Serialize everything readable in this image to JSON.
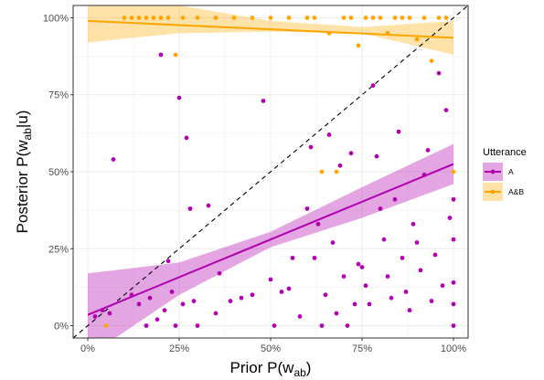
{
  "chart_data": {
    "type": "scatter",
    "title": "",
    "xlabel_main": "Prior P(w",
    "xlabel_sub": "ab",
    "xlabel_end": ")",
    "ylabel_main": "Posterior P(w",
    "ylabel_sub": "ab",
    "ylabel_end": "|u)",
    "xlim": [
      -0.04,
      1.04
    ],
    "ylim": [
      -0.04,
      1.04
    ],
    "x_ticks": [
      0,
      0.25,
      0.5,
      0.75,
      1
    ],
    "y_ticks": [
      0,
      0.25,
      0.5,
      0.75,
      1
    ],
    "tick_labels": [
      "0%",
      "25%",
      "50%",
      "75%",
      "100%"
    ],
    "grid": true,
    "reference_line": {
      "type": "diagonal",
      "style": "dashed",
      "color": "#000000"
    },
    "legend": {
      "title": "Utterance",
      "placement": "right"
    },
    "series": [
      {
        "name": "A",
        "color": "#b000b0",
        "fit": {
          "intercept": 0.035,
          "slope": 0.49
        },
        "band": {
          "x": [
            0,
            0.25,
            0.5,
            0.75,
            1
          ],
          "lower": [
            -0.1,
            0.1,
            0.255,
            0.35,
            0.46
          ],
          "upper": [
            0.17,
            0.205,
            0.305,
            0.45,
            0.59
          ]
        },
        "points": [
          {
            "x": 0.02,
            "y": 0.03
          },
          {
            "x": 0.04,
            "y": 0.05
          },
          {
            "x": 0.06,
            "y": 0.04
          },
          {
            "x": 0.07,
            "y": 0.54
          },
          {
            "x": 0.12,
            "y": 0.1
          },
          {
            "x": 0.14,
            "y": 0.07
          },
          {
            "x": 0.16,
            "y": 0.0
          },
          {
            "x": 0.17,
            "y": 0.09
          },
          {
            "x": 0.19,
            "y": 0.02
          },
          {
            "x": 0.2,
            "y": 0.88
          },
          {
            "x": 0.21,
            "y": 0.05
          },
          {
            "x": 0.22,
            "y": 0.21
          },
          {
            "x": 0.23,
            "y": 0.11
          },
          {
            "x": 0.24,
            "y": 0.0
          },
          {
            "x": 0.25,
            "y": 0.74
          },
          {
            "x": 0.26,
            "y": 0.07
          },
          {
            "x": 0.27,
            "y": 0.61
          },
          {
            "x": 0.28,
            "y": 0.38
          },
          {
            "x": 0.29,
            "y": 0.08
          },
          {
            "x": 0.3,
            "y": 0.0
          },
          {
            "x": 0.33,
            "y": 0.39
          },
          {
            "x": 0.35,
            "y": 0.04
          },
          {
            "x": 0.36,
            "y": 0.17
          },
          {
            "x": 0.39,
            "y": 0.08
          },
          {
            "x": 0.42,
            "y": 0.09
          },
          {
            "x": 0.45,
            "y": 0.1
          },
          {
            "x": 0.48,
            "y": 0.73
          },
          {
            "x": 0.5,
            "y": 0.15
          },
          {
            "x": 0.51,
            "y": 0.0
          },
          {
            "x": 0.53,
            "y": 0.11
          },
          {
            "x": 0.55,
            "y": 0.12
          },
          {
            "x": 0.56,
            "y": 0.22
          },
          {
            "x": 0.58,
            "y": 0.03
          },
          {
            "x": 0.6,
            "y": 0.38
          },
          {
            "x": 0.61,
            "y": 0.58
          },
          {
            "x": 0.62,
            "y": 0.22
          },
          {
            "x": 0.63,
            "y": 0.33
          },
          {
            "x": 0.64,
            "y": 0.0
          },
          {
            "x": 0.65,
            "y": 0.1
          },
          {
            "x": 0.66,
            "y": 0.62
          },
          {
            "x": 0.67,
            "y": 0.27
          },
          {
            "x": 0.68,
            "y": 0.04
          },
          {
            "x": 0.69,
            "y": 0.52
          },
          {
            "x": 0.7,
            "y": 0.16
          },
          {
            "x": 0.71,
            "y": 0.0
          },
          {
            "x": 0.72,
            "y": 0.56
          },
          {
            "x": 0.73,
            "y": 0.07
          },
          {
            "x": 0.74,
            "y": 0.2
          },
          {
            "x": 0.75,
            "y": 0.19
          },
          {
            "x": 0.76,
            "y": 0.13
          },
          {
            "x": 0.77,
            "y": 0.07
          },
          {
            "x": 0.78,
            "y": 0.78
          },
          {
            "x": 0.79,
            "y": 0.55
          },
          {
            "x": 0.8,
            "y": 0.38
          },
          {
            "x": 0.81,
            "y": 0.28
          },
          {
            "x": 0.82,
            "y": 0.16
          },
          {
            "x": 0.83,
            "y": 0.09
          },
          {
            "x": 0.84,
            "y": 0.41
          },
          {
            "x": 0.85,
            "y": 0.63
          },
          {
            "x": 0.86,
            "y": 0.22
          },
          {
            "x": 0.87,
            "y": 0.11
          },
          {
            "x": 0.88,
            "y": 0.05
          },
          {
            "x": 0.89,
            "y": 0.33
          },
          {
            "x": 0.9,
            "y": 0.27
          },
          {
            "x": 0.91,
            "y": 0.18
          },
          {
            "x": 0.92,
            "y": 0.49
          },
          {
            "x": 0.93,
            "y": 0.57
          },
          {
            "x": 0.94,
            "y": 0.08
          },
          {
            "x": 0.95,
            "y": 0.23
          },
          {
            "x": 0.96,
            "y": 0.82
          },
          {
            "x": 0.97,
            "y": 0.13
          },
          {
            "x": 0.98,
            "y": 0.7
          },
          {
            "x": 0.99,
            "y": 0.35
          },
          {
            "x": 1.0,
            "y": 0.41
          },
          {
            "x": 1.0,
            "y": 0.14
          },
          {
            "x": 1.0,
            "y": 0.28
          },
          {
            "x": 1.0,
            "y": 0.0
          },
          {
            "x": 1.0,
            "y": 0.07
          }
        ]
      },
      {
        "name": "A&B",
        "color": "#ffa500",
        "fit": {
          "intercept": 0.99,
          "slope": -0.055
        },
        "band": {
          "x": [
            0,
            0.25,
            0.5,
            0.75,
            1
          ],
          "lower": [
            0.92,
            0.95,
            0.955,
            0.95,
            0.88
          ],
          "upper": [
            1.06,
            1.04,
            0.99,
            0.97,
            0.99
          ]
        },
        "points": [
          {
            "x": 0.05,
            "y": 0.0
          },
          {
            "x": 0.1,
            "y": 1.0
          },
          {
            "x": 0.12,
            "y": 1.0
          },
          {
            "x": 0.14,
            "y": 1.0
          },
          {
            "x": 0.16,
            "y": 1.0
          },
          {
            "x": 0.18,
            "y": 1.0
          },
          {
            "x": 0.2,
            "y": 1.0
          },
          {
            "x": 0.22,
            "y": 1.0
          },
          {
            "x": 0.24,
            "y": 0.88
          },
          {
            "x": 0.26,
            "y": 1.0
          },
          {
            "x": 0.3,
            "y": 1.0
          },
          {
            "x": 0.35,
            "y": 1.0
          },
          {
            "x": 0.4,
            "y": 1.0
          },
          {
            "x": 0.45,
            "y": 1.0
          },
          {
            "x": 0.5,
            "y": 1.0
          },
          {
            "x": 0.55,
            "y": 1.0
          },
          {
            "x": 0.6,
            "y": 1.0
          },
          {
            "x": 0.62,
            "y": 1.0
          },
          {
            "x": 0.64,
            "y": 0.5
          },
          {
            "x": 0.66,
            "y": 0.95
          },
          {
            "x": 0.68,
            "y": 0.5
          },
          {
            "x": 0.7,
            "y": 1.0
          },
          {
            "x": 0.72,
            "y": 1.0
          },
          {
            "x": 0.74,
            "y": 0.91
          },
          {
            "x": 0.76,
            "y": 1.0
          },
          {
            "x": 0.78,
            "y": 1.0
          },
          {
            "x": 0.8,
            "y": 1.0
          },
          {
            "x": 0.82,
            "y": 0.95
          },
          {
            "x": 0.84,
            "y": 1.0
          },
          {
            "x": 0.86,
            "y": 1.0
          },
          {
            "x": 0.88,
            "y": 1.0
          },
          {
            "x": 0.9,
            "y": 0.93
          },
          {
            "x": 0.92,
            "y": 1.0
          },
          {
            "x": 0.94,
            "y": 0.86
          },
          {
            "x": 0.96,
            "y": 1.0
          },
          {
            "x": 0.98,
            "y": 1.0
          },
          {
            "x": 1.0,
            "y": 0.5
          }
        ]
      }
    ]
  }
}
